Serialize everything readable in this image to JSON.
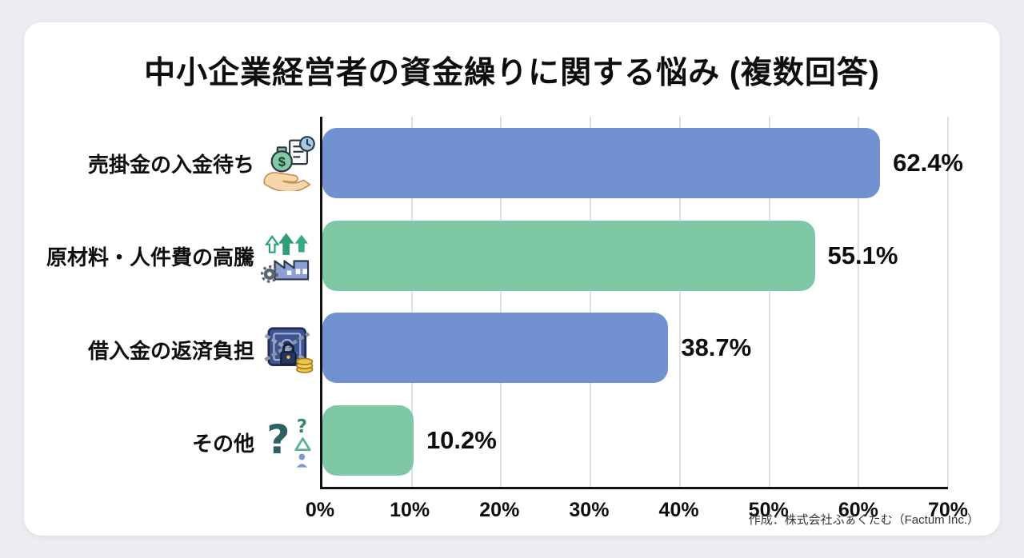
{
  "title": "中小企業経営者の資金繰りに関する悩み (複数回答)",
  "footer": "作成：株式会社ふぁくたむ（Factum Inc.）",
  "colors": {
    "blue_bar": "#7191d1",
    "green_bar": "#7fc8a6",
    "page_background": "#eceef2",
    "card_background": "#ffffff"
  },
  "chart_data": {
    "type": "bar",
    "orientation": "horizontal",
    "title": "中小企業経営者の資金繰りに関する悩み (複数回答)",
    "categories": [
      "売掛金の入金待ち",
      "原材料・人件費の高騰",
      "借入金の返済負担",
      "その他"
    ],
    "values": [
      62.4,
      55.1,
      38.7,
      10.2
    ],
    "value_labels": [
      "62.4%",
      "55.1%",
      "38.7%",
      "10.2%"
    ],
    "bar_colors": [
      "#7191d1",
      "#7fc8a6",
      "#7191d1",
      "#7fc8a6"
    ],
    "icons": [
      "invoice-payment-icon",
      "rising-costs-icon",
      "loan-safe-icon",
      "question-icon"
    ],
    "xlim": [
      0,
      70
    ],
    "x_ticks": [
      "0%",
      "10%",
      "20%",
      "30%",
      "40%",
      "50%",
      "60%",
      "70%"
    ],
    "grid": true,
    "legend": false
  }
}
